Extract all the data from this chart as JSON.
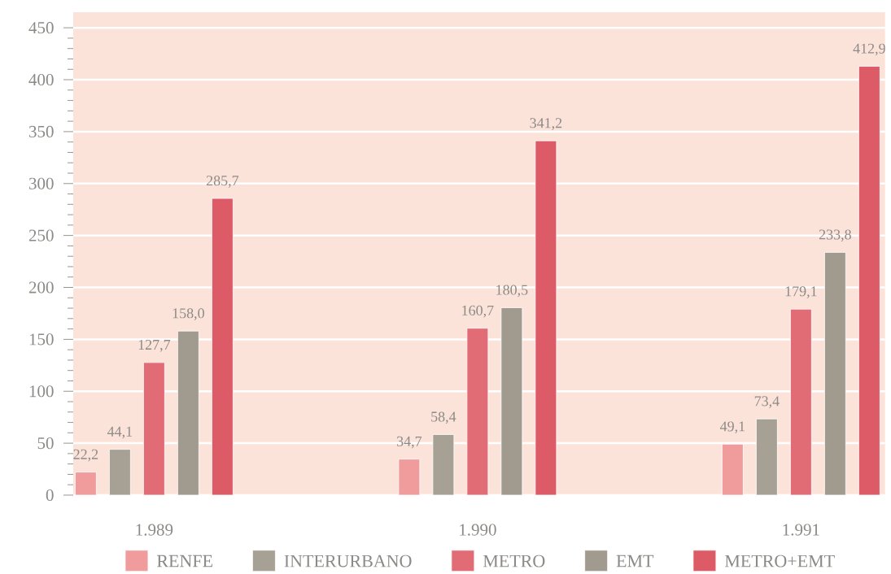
{
  "chart_data": {
    "type": "bar",
    "categories": [
      "1.989",
      "1.990",
      "1.991"
    ],
    "series": [
      {
        "name": "RENFE",
        "color": "#f09c9c",
        "values": [
          22.2,
          34.7,
          49.1
        ],
        "value_labels": [
          "22,2",
          "34,7",
          "49,1"
        ]
      },
      {
        "name": "INTERURBANO",
        "color": "#a7a095",
        "values": [
          44.1,
          58.4,
          73.4
        ],
        "value_labels": [
          "44,1",
          "58,4",
          "73,4"
        ]
      },
      {
        "name": "METRO",
        "color": "#e26c76",
        "values": [
          127.7,
          160.7,
          179.1
        ],
        "value_labels": [
          "127,7",
          "160,7",
          "179,1"
        ]
      },
      {
        "name": "EMT",
        "color": "#a19a8f",
        "values": [
          158.0,
          180.5,
          233.8
        ],
        "value_labels": [
          "158,0",
          "180,5",
          "233,8"
        ]
      },
      {
        "name": "METRO+EMT",
        "color": "#dc5b67",
        "values": [
          285.7,
          341.2,
          412.9
        ],
        "value_labels": [
          "285,7",
          "341,2",
          "412,9"
        ]
      }
    ],
    "ylim": [
      0,
      465
    ],
    "yticks": [
      0,
      50,
      100,
      150,
      200,
      250,
      300,
      350,
      400,
      450
    ],
    "grid": "y",
    "legend": "bottom"
  }
}
